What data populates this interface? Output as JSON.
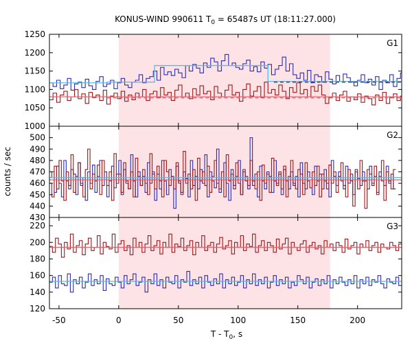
{
  "chart_data": {
    "type": "line",
    "title_main": "KONUS-WIND 990611 T",
    "title_sub": "0",
    "title_rest": " = 65487s UT (18:11:27.000)",
    "xlabel_main": "T - T",
    "xlabel_sub": "0",
    "xlabel_rest": ", s",
    "ylabel": "counts / sec",
    "xlim": [
      -58,
      237
    ],
    "x_ticks": [
      -50,
      0,
      50,
      100,
      150,
      200
    ],
    "x_tick_labels": [
      "-50",
      "0",
      "50",
      "100",
      "150",
      "200"
    ],
    "shaded_interval": [
      0,
      177
    ],
    "grid": false,
    "colors": {
      "blue": "#2b2bb0",
      "red": "#a01515",
      "background_blue": "#55bbee",
      "background_red": "#e06070",
      "shade": "#fde3e6"
    },
    "panels": [
      {
        "label": "G1",
        "ylim": [
          1000,
          1250
        ],
        "y_ticks": [
          1000,
          1050,
          1100,
          1150,
          1200,
          1250
        ],
        "y_tick_labels": [
          "1000",
          "1050",
          "1100",
          "1150",
          "1200",
          "1250"
        ],
        "bin_width": 3.0,
        "series": [
          {
            "color": "blue",
            "step": true,
            "x_start": -58,
            "values": [
              1118,
              1108,
              1125,
              1102,
              1112,
              1130,
              1098,
              1115,
              1120,
              1105,
              1128,
              1110,
              1100,
              1122,
              1135,
              1108,
              1115,
              1125,
              1102,
              1118,
              1130,
              1112,
              1105,
              1120,
              1125,
              1140,
              1118,
              1130,
              1135,
              1150,
              1125,
              1160,
              1140,
              1148,
              1138,
              1155,
              1145,
              1132,
              1165,
              1150,
              1168,
              1158,
              1145,
              1172,
              1160,
              1185,
              1175,
              1150,
              1178,
              1195,
              1165,
              1172,
              1160,
              1155,
              1170,
              1180,
              1150,
              1162,
              1148,
              1175,
              1158,
              1168,
              1140,
              1155,
              1165,
              1188,
              1150,
              1170,
              1140,
              1130,
              1145,
              1125,
              1152,
              1118,
              1140,
              1135,
              1120,
              1148,
              1128,
              1115,
              1138,
              1122,
              1142,
              1132,
              1120,
              1110,
              1125,
              1140,
              1118,
              1128,
              1112,
              1135,
              1100,
              1125,
              1118,
              1140,
              1108,
              1130,
              1145,
              1122
            ]
          },
          {
            "color": "red",
            "step": true,
            "x_start": -58,
            "values": [
              1072,
              1090,
              1065,
              1085,
              1095,
              1070,
              1080,
              1100,
              1075,
              1088,
              1062,
              1092,
              1078,
              1085,
              1070,
              1098,
              1060,
              1082,
              1090,
              1075,
              1095,
              1068,
              1085,
              1072,
              1090,
              1080,
              1100,
              1070,
              1088,
              1095,
              1078,
              1105,
              1085,
              1092,
              1070,
              1098,
              1112,
              1080,
              1090,
              1075,
              1102,
              1085,
              1110,
              1088,
              1095,
              1072,
              1108,
              1090,
              1080,
              1098,
              1112,
              1085,
              1092,
              1068,
              1100,
              1115,
              1082,
              1095,
              1108,
              1078,
              1120,
              1090,
              1100,
              1085,
              1112,
              1095,
              1075,
              1105,
              1092,
              1118,
              1088,
              1100,
              1080,
              1108,
              1095,
              1112,
              1085,
              1062,
              1078,
              1090,
              1070,
              1085,
              1095,
              1068,
              1080,
              1072,
              1088,
              1065,
              1082,
              1075,
              1058,
              1085,
              1070,
              1092,
              1062,
              1078,
              1088,
              1070,
              1082,
              1075
            ]
          },
          {
            "color": "background_blue",
            "step": false,
            "x": [
              -58,
              -10,
              -10,
              30,
              30,
              125,
              125,
              237
            ],
            "y": [
              1118,
              1118,
              1120,
              1120,
              1165,
              1165,
              1122,
              1122
            ]
          },
          {
            "color": "background_red",
            "step": false,
            "x": [
              -58,
              237
            ],
            "y": [
              1080,
              1080
            ]
          },
          {
            "color": "background_red",
            "step": false,
            "dashed": true,
            "x": [
              -10,
              237
            ],
            "y": [
              1077,
              1077
            ]
          },
          {
            "color": "red",
            "step": false,
            "dashed": true,
            "x": [
              130,
              237
            ],
            "y": [
              1120,
              1120
            ]
          }
        ]
      },
      {
        "label": "G2",
        "ylim": [
          430,
          510
        ],
        "y_ticks": [
          430,
          440,
          450,
          460,
          470,
          480,
          490,
          500
        ],
        "y_tick_labels": [
          "430",
          "440",
          "450",
          "460",
          "470",
          "480",
          "490",
          "500"
        ],
        "bin_width": 2.0,
        "series": [
          {
            "color": "blue",
            "step": true,
            "x_start": -58,
            "values": [
              465,
              470,
              452,
              475,
              460,
              448,
              480,
              462,
              455,
              472,
              468,
              450,
              478,
              458,
              465,
              445,
              470,
              460,
              476,
              452,
              466,
              480,
              458,
              470,
              448,
              462,
              475,
              456,
              468,
              480,
              450,
              472,
              460,
              455,
              485,
              462,
              448,
              470,
              458,
              466,
              452,
              478,
              460,
              470,
              445,
              468,
              455,
              480,
              462,
              450,
              472,
              466,
              438,
              475,
              460,
              452,
              470,
              464,
              448,
              480,
              458,
              466,
              455,
              472,
              460,
              485,
              448,
              470,
              462,
              456,
              490,
              452,
              465,
              478,
              460,
              445,
              472,
              458,
              466,
              480,
              450,
              470,
              462,
              455,
              500,
              458,
              468,
              448,
              475,
              462,
              455,
              470,
              466,
              452,
              480,
              460,
              468,
              450,
              472,
              462,
              455,
              470,
              458,
              466,
              448,
              478,
              460,
              455,
              470,
              465,
              450,
              475,
              462,
              468,
              455,
              472,
              460,
              448,
              480,
              466,
              458,
              470,
              462,
              455,
              475,
              460,
              468,
              450,
              472,
              464,
              458,
              470,
              462,
              455,
              475,
              460,
              466,
              452,
              470,
              462,
              458,
              475,
              460,
              468,
              455
            ]
          },
          {
            "color": "red",
            "step": true,
            "x_start": -58,
            "values": [
              460,
              448,
              475,
              455,
              480,
              462,
              445,
              470,
              458,
              485,
              452,
              466,
              478,
              460,
              448,
              472,
              490,
              455,
              468,
              462,
              476,
              450,
              480,
              465,
              458,
              470,
              445,
              486,
              460,
              468,
              452,
              478,
              462,
              455,
              470,
              448,
              482,
              466,
              458,
              472,
              460,
              450,
              486,
              468,
              455,
              475,
              462,
              448,
              480,
              470,
              458,
              466,
              455,
              478,
              462,
              450,
              488,
              460,
              468,
              455,
              472,
              445,
              482,
              462,
              470,
              458,
              475,
              452,
              466,
              480,
              460,
              455,
              470,
              448,
              485,
              462,
              468,
              455,
              478,
              460,
              450,
              472,
              466,
              458,
              480,
              462,
              455,
              470,
              445,
              476,
              460,
              468,
              452,
              482,
              462,
              458,
              470,
              455,
              475,
              448,
              466,
              480,
              460,
              455,
              472,
              468,
              450,
              478,
              462,
              456,
              470,
              458,
              475,
              448,
              468,
              462,
              455,
              476,
              460,
              470,
              452,
              466,
              478,
              458,
              448,
              472,
              462,
              440,
              470,
              455,
              480,
              462,
              438,
              472,
              468,
              458,
              475,
              450,
              466,
              480,
              445,
              470,
              462,
              455,
              472
            ]
          },
          {
            "color": "background_blue",
            "step": false,
            "x": [
              -58,
              237
            ],
            "y": [
              465,
              465
            ]
          },
          {
            "color": "background_red",
            "step": false,
            "x": [
              -58,
              237
            ],
            "y": [
              463,
              463
            ]
          }
        ]
      },
      {
        "label": "G3",
        "ylim": [
          120,
          230
        ],
        "y_ticks": [
          120,
          140,
          160,
          180,
          200,
          220
        ],
        "y_tick_labels": [
          "120",
          "140",
          "160",
          "180",
          "200",
          "220"
        ],
        "bin_width": 2.5,
        "series": [
          {
            "color": "blue",
            "step": true,
            "x_start": -58,
            "values": [
              152,
              158,
              145,
              160,
              150,
              148,
              162,
              140,
              155,
              150,
              158,
              145,
              152,
              162,
              148,
              155,
              150,
              160,
              142,
              156,
              150,
              148,
              158,
              152,
              145,
              160,
              150,
              155,
              162,
              148,
              152,
              158,
              140,
              155,
              150,
              162,
              148,
              155,
              145,
              158,
              152,
              150,
              160,
              145,
              155,
              152,
              165,
              148,
              155,
              150,
              158,
              145,
              160,
              152,
              148,
              156,
              150,
              162,
              145,
              155,
              150,
              158,
              148,
              152,
              160,
              145,
              155,
              150,
              162,
              148,
              155,
              150,
              158,
              145,
              152,
              160,
              148,
              155,
              150,
              158,
              145,
              152,
              148,
              160,
              155,
              150,
              158,
              145,
              152,
              156,
              148,
              155,
              150,
              160,
              145,
              155,
              150,
              158,
              152,
              148,
              155,
              150,
              160,
              145,
              155,
              150,
              158,
              148,
              155,
              152,
              160,
              150,
              145,
              156,
              152,
              150,
              158,
              148
            ]
          },
          {
            "color": "red",
            "step": true,
            "x_start": -58,
            "values": [
              195,
              188,
              205,
              198,
              182,
              200,
              192,
              210,
              188,
              196,
              202,
              185,
              198,
              205,
              190,
              194,
              208,
              186,
              200,
              195,
              192,
              210,
              188,
              198,
              202,
              190,
              196,
              185,
              205,
              194,
              200,
              188,
              198,
              208,
              190,
              196,
              202,
              186,
              200,
              194,
              210,
              188,
              198,
              195,
              205,
              190,
              196,
              202,
              185,
              200,
              194,
              208,
              190,
              196,
              200,
              188,
              198,
              206,
              192,
              196,
              202,
              186,
              200,
              194,
              208,
              190,
              198,
              195,
              210,
              188,
              196,
              202,
              190,
              200,
              196,
              188,
              204,
              192,
              198,
              205,
              186,
              200,
              194,
              190,
              198,
              202,
              188,
              196,
              200,
              192,
              196,
              186,
              202,
              194,
              198,
              190,
              200,
              196,
              188,
              204,
              192,
              196,
              200,
              186,
              198,
              194,
              202,
              190,
              196,
              200,
              188,
              198,
              194,
              192,
              200,
              196,
              190,
              198
            ]
          },
          {
            "color": "background_red",
            "step": false,
            "x": [
              -58,
              237
            ],
            "y": [
              194,
              194
            ]
          },
          {
            "color": "background_blue",
            "step": false,
            "x": [
              -58,
              237
            ],
            "y": [
              153,
              153
            ]
          }
        ]
      }
    ]
  }
}
